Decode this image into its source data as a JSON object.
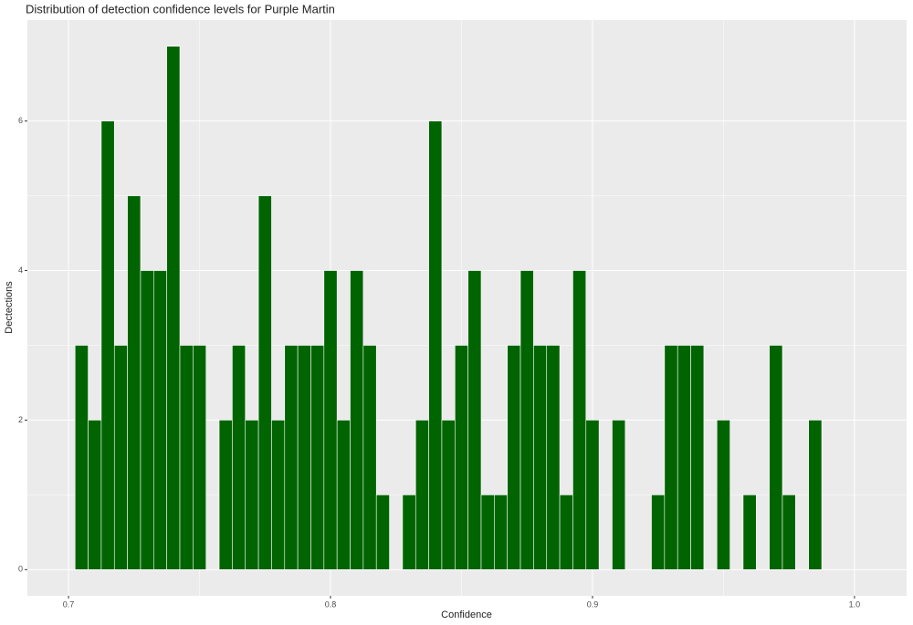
{
  "chart_data": {
    "type": "histogram",
    "title": "Distribution of detection confidence levels for Purple Martin",
    "x_label": "Confidence",
    "y_label": "Dectections",
    "color": "#006400",
    "grid": true,
    "bins": [
      0.7025,
      0.7075,
      0.7125,
      0.7175,
      0.7225,
      0.7275,
      0.7325,
      0.7375,
      0.7425,
      0.7475,
      0.7525,
      0.7575,
      0.7625,
      0.7675,
      0.7725,
      0.7775,
      0.7825,
      0.7875,
      0.7925,
      0.7975,
      0.8025,
      0.8075,
      0.8125,
      0.8175,
      0.8225,
      0.8275,
      0.8325,
      0.8375,
      0.8425,
      0.8475,
      0.8525,
      0.8575,
      0.8625,
      0.8675,
      0.8725,
      0.8775,
      0.8825,
      0.8875,
      0.8925,
      0.8975,
      0.9025,
      0.9075,
      0.9125,
      0.9175,
      0.9225,
      0.9275,
      0.9325,
      0.9375,
      0.9425,
      0.9475,
      0.9525,
      0.9575,
      0.9625,
      0.9675,
      0.9725,
      0.9775,
      0.9825,
      0.9875
    ],
    "values": [
      3,
      2,
      6,
      3,
      5,
      4,
      4,
      7,
      3,
      3,
      0,
      2,
      3,
      2,
      5,
      2,
      3,
      3,
      3,
      4,
      2,
      4,
      3,
      1,
      0,
      1,
      2,
      6,
      2,
      3,
      4,
      1,
      1,
      3,
      4,
      3,
      3,
      1,
      4,
      2,
      0,
      2,
      0,
      0,
      1,
      3,
      3,
      3,
      0,
      2,
      0,
      1,
      0,
      3,
      1,
      0,
      2
    ],
    "xlim": [
      0.6843,
      1.0199
    ],
    "ylim": [
      -0.35,
      7.35
    ],
    "xticks": [
      0.7,
      0.8,
      0.9,
      {
        "value": 1,
        "label": "1.0"
      }
    ],
    "yticks": [
      0,
      2,
      4,
      6
    ]
  }
}
